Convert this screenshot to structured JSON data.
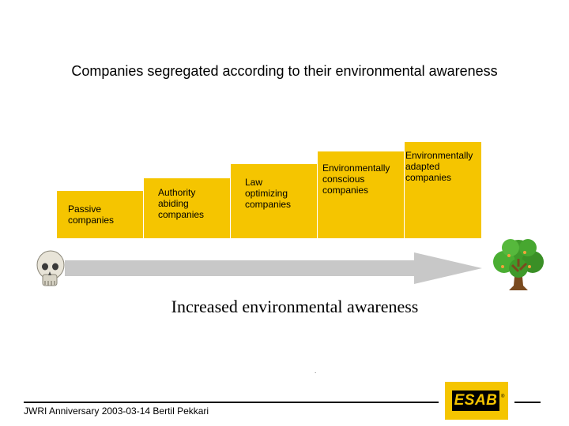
{
  "slide": {
    "title": "Companies segregated according to their environmental awareness",
    "steps": [
      {
        "label": "Passive\ncompanies"
      },
      {
        "label": "Authority\nabiding\ncompanies"
      },
      {
        "label": "Law\noptimizing\ncompanies"
      },
      {
        "label": "Environmentally\nconscious\ncompanies"
      },
      {
        "label": "Environmentally\nadapted\ncompanies"
      }
    ],
    "arrow_caption": "Increased environmental awareness",
    "dot": ".",
    "footer": "JWRI Anniversary 2003-03-14 Bertil Pekkari",
    "logo": {
      "text": "ESAB",
      "registered": "®"
    },
    "colors": {
      "step_fill": "#f5c500",
      "arrow_fill": "#c8c8c8",
      "logo_bg": "#f5c500"
    },
    "icons": {
      "start": "skull-icon",
      "end": "tree-icon"
    }
  }
}
